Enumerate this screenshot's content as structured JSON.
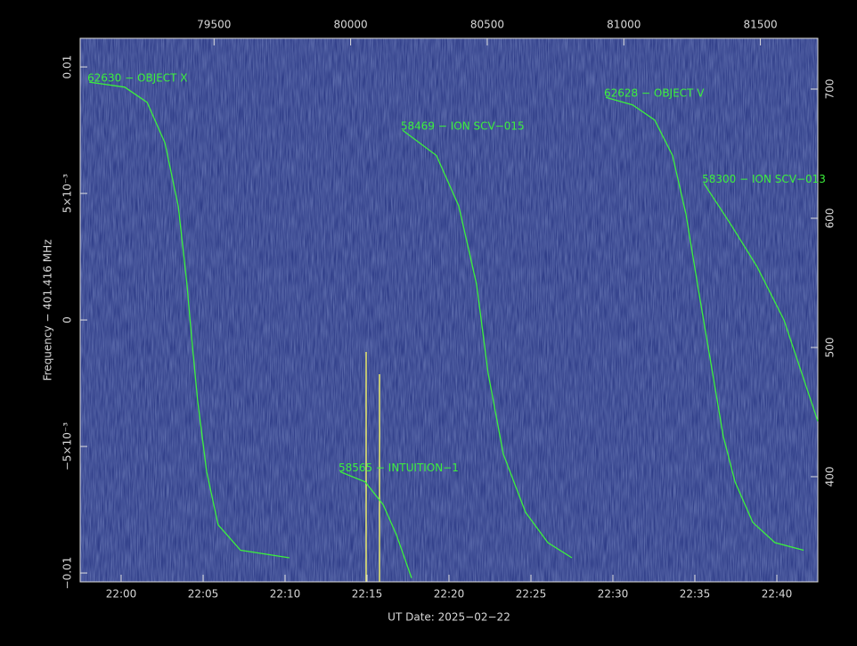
{
  "chart_data": {
    "type": "line",
    "x_label": "UT Date: 2025−02−22",
    "y_label": "Frequency − 401.416 MHz",
    "xlim": [
      79010,
      81710
    ],
    "xticks": [
      {
        "value": 79160,
        "label": "22:00"
      },
      {
        "value": 79460,
        "label": "22:05"
      },
      {
        "value": 79760,
        "label": "22:10"
      },
      {
        "value": 80060,
        "label": "22:15"
      },
      {
        "value": 80360,
        "label": "22:20"
      },
      {
        "value": 80660,
        "label": "22:25"
      },
      {
        "value": 80960,
        "label": "22:30"
      },
      {
        "value": 81260,
        "label": "22:35"
      },
      {
        "value": 81560,
        "label": "22:40"
      }
    ],
    "x2ticks": [
      79500,
      80000,
      80500,
      81000,
      81500
    ],
    "ylim": [
      -0.01035,
      0.01113
    ],
    "yticks": [
      {
        "value": -0.01,
        "label": "−0.01"
      },
      {
        "value": -0.005,
        "label": "−5×10⁻³"
      },
      0,
      {
        "value": 0.005,
        "label": "5×10⁻³"
      },
      0.01
    ],
    "y2lim": [
      318.6,
      739.3
    ],
    "y2ticks": [
      400,
      500,
      600,
      700
    ],
    "series": [
      {
        "name": "62630 − OBJECT X",
        "color": "#3cf03c",
        "x": [
          79043,
          79173,
          79255,
          79320,
          79369,
          79401,
          79418,
          79440,
          79473,
          79515,
          79597,
          79776
        ],
        "values": [
          0.0094,
          0.0092,
          0.0086,
          0.007,
          0.0045,
          0.0014,
          -0.0007,
          -0.0032,
          -0.006,
          -0.0081,
          -0.0091,
          -0.0094
        ]
      },
      {
        "name": "58469 − ION SCV−015",
        "color": "#3cf03c",
        "x": [
          80190,
          80314,
          80396,
          80461,
          80503,
          80559,
          80640,
          80722,
          80810
        ],
        "values": [
          0.0075,
          0.0065,
          0.0045,
          0.0014,
          -0.0021,
          -0.0053,
          -0.0076,
          -0.0088,
          -0.0094
        ]
      },
      {
        "name": "58565 − INTUITION−1",
        "color": "#3cf03c",
        "x": [
          79962,
          80053,
          80119,
          80168,
          80223
        ],
        "values": [
          -0.006,
          -0.0064,
          -0.0073,
          -0.0085,
          -0.0102
        ]
      },
      {
        "name": "62628 − OBJECT V",
        "color": "#3cf03c",
        "x": [
          80934,
          81032,
          81113,
          81178,
          81227,
          81276,
          81325,
          81364,
          81407,
          81472,
          81553,
          81658
        ],
        "values": [
          0.0088,
          0.0085,
          0.0079,
          0.0065,
          0.0042,
          0.001,
          -0.0021,
          -0.0046,
          -0.0064,
          -0.008,
          -0.0088,
          -0.0091
        ]
      },
      {
        "name": "58300 − ION SCV−013",
        "color": "#3cf03c",
        "x": [
          81293,
          81390,
          81488,
          81586,
          81710
        ],
        "values": [
          0.0054,
          0.0038,
          0.0021,
          0.0,
          -0.004
        ]
      }
    ]
  }
}
